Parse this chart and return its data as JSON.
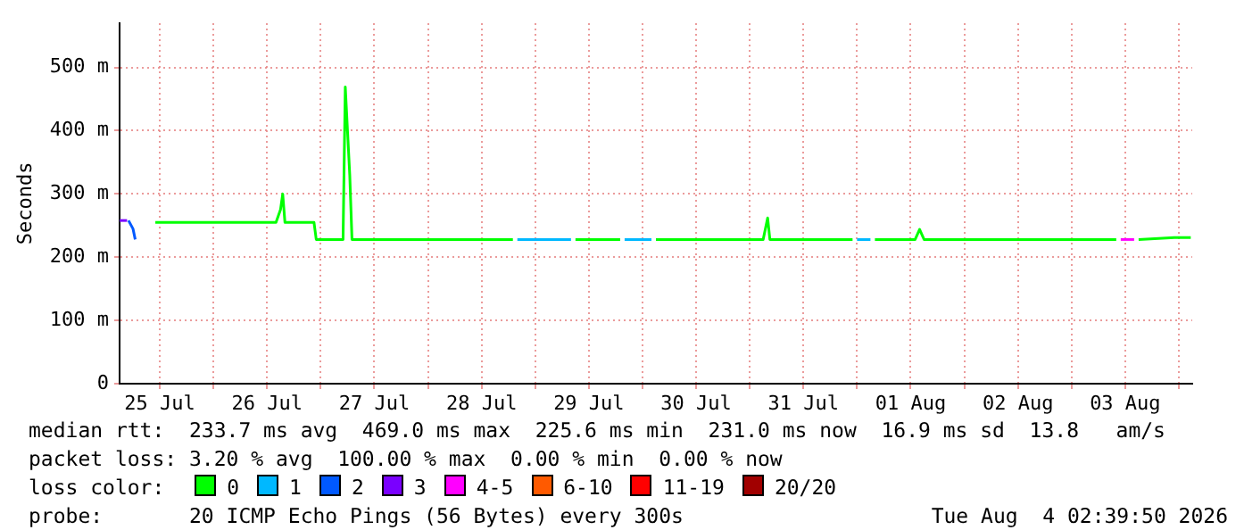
{
  "chart_data": {
    "type": "line",
    "ylabel": "Seconds",
    "legend_title": "loss color:",
    "legend": "bottom",
    "grid": true,
    "marker": "none",
    "line_style": "solid",
    "xlim": [
      "2026-07-25T03:00",
      "2026-08-04T03:00"
    ],
    "xticks": [
      {
        "value": "2026-07-25T12:00",
        "label": "25 Jul"
      },
      {
        "value": "2026-07-26T00:00",
        "label": null
      },
      {
        "value": "2026-07-26T12:00",
        "label": "26 Jul"
      },
      {
        "value": "2026-07-27T00:00",
        "label": null
      },
      {
        "value": "2026-07-27T12:00",
        "label": "27 Jul"
      },
      {
        "value": "2026-07-28T00:00",
        "label": null
      },
      {
        "value": "2026-07-28T12:00",
        "label": "28 Jul"
      },
      {
        "value": "2026-07-29T00:00",
        "label": null
      },
      {
        "value": "2026-07-29T12:00",
        "label": "29 Jul"
      },
      {
        "value": "2026-07-30T00:00",
        "label": null
      },
      {
        "value": "2026-07-30T12:00",
        "label": "30 Jul"
      },
      {
        "value": "2026-07-31T00:00",
        "label": null
      },
      {
        "value": "2026-07-31T12:00",
        "label": "31 Jul"
      },
      {
        "value": "2026-08-01T00:00",
        "label": null
      },
      {
        "value": "2026-08-01T12:00",
        "label": "01 Aug"
      },
      {
        "value": "2026-08-02T00:00",
        "label": null
      },
      {
        "value": "2026-08-02T12:00",
        "label": "02 Aug"
      },
      {
        "value": "2026-08-03T00:00",
        "label": null
      },
      {
        "value": "2026-08-03T12:00",
        "label": "03 Aug"
      },
      {
        "value": "2026-08-04T00:00",
        "label": null
      }
    ],
    "ylim": [
      0,
      570
    ],
    "yticks": [
      0,
      {
        "value": 100,
        "label": "100 m"
      },
      {
        "value": 200,
        "label": "200 m"
      },
      {
        "value": 300,
        "label": "300 m"
      },
      {
        "value": 400,
        "label": "400 m"
      },
      {
        "value": 500,
        "label": "500 m"
      }
    ],
    "series": [
      {
        "name": "0",
        "color": "#00ff00",
        "x": [
          "2026-07-25T11:00",
          "2026-07-26T14:00",
          "2026-07-26T15:00",
          "2026-07-26T15:30",
          "2026-07-26T16:00",
          "2026-07-26T22:30",
          "2026-07-26T23:00",
          "2026-07-27T05:00",
          "2026-07-27T05:30",
          "2026-07-27T06:30",
          "2026-07-27T07:00",
          "2026-07-28T19:00",
          "2026-07-28T20:00",
          "2026-07-29T09:00",
          "2026-07-29T19:00",
          "2026-07-29T20:00",
          "2026-07-30T03:00",
          "2026-07-31T03:00",
          "2026-07-31T04:00",
          "2026-07-31T04:30",
          "2026-07-31T23:00",
          "2026-08-01T00:00",
          "2026-08-01T04:00",
          "2026-08-01T13:00",
          "2026-08-01T14:00",
          "2026-08-01T15:00",
          "2026-08-03T10:00",
          "2026-08-03T13:00",
          "2026-08-03T15:00",
          "2026-08-03T23:00",
          "2026-08-04T02:40"
        ],
        "values": [
          255,
          255,
          275,
          300,
          255,
          255,
          228,
          228,
          469,
          330,
          228,
          228,
          null,
          228,
          228,
          null,
          228,
          228,
          262,
          228,
          228,
          null,
          228,
          228,
          244,
          228,
          228,
          null,
          228,
          231,
          231
        ]
      },
      {
        "name": "1",
        "color": "#00b8ff",
        "x": [
          "2026-07-28T20:00",
          "2026-07-29T08:00",
          "2026-07-29T09:00",
          "2026-07-29T20:00",
          "2026-07-30T02:00",
          "2026-07-30T03:00",
          "2026-08-01T00:00",
          "2026-08-01T03:00"
        ],
        "values": [
          228,
          228,
          null,
          228,
          228,
          null,
          228,
          228
        ]
      },
      {
        "name": "2",
        "color": "#0059ff",
        "x": [
          "2026-07-25T05:00",
          "2026-07-25T06:00",
          "2026-07-25T06:30"
        ],
        "values": [
          258,
          245,
          228
        ]
      },
      {
        "name": "3",
        "color": "#7a00ff",
        "x": [
          "2026-07-25T03:00",
          "2026-07-25T04:40"
        ],
        "values": [
          258,
          258
        ]
      },
      {
        "name": "4-5",
        "color": "#ff00ff",
        "x": [
          "2026-08-03T11:00",
          "2026-08-03T14:00"
        ],
        "values": [
          228,
          228
        ]
      },
      {
        "name": "6-10",
        "color": "#ff5a00"
      },
      {
        "name": "11-19",
        "color": "#ff0000"
      },
      {
        "name": "20/20",
        "color": "#a10000"
      }
    ],
    "annotations": [
      "median rtt:  233.7 ms avg  469.0 ms max  225.6 ms min  231.0 ms now  16.9 ms sd  13.8   am/s",
      "packet loss: 3.20 % avg  100.00 % max  0.00 % min  0.00 % now",
      "probe:       20 ICMP Echo Pings (56 Bytes) every 300s",
      "Tue Aug  4 02:39:50 2026"
    ]
  }
}
